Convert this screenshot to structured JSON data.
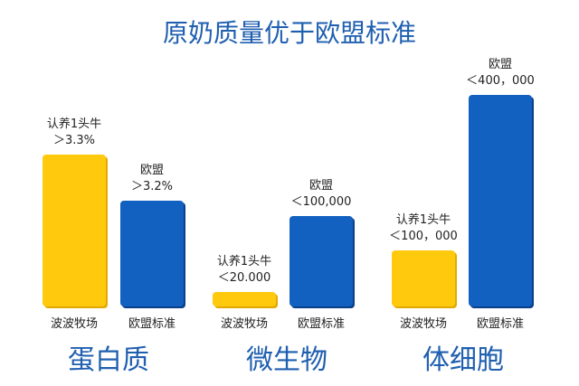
{
  "title": "原奶质量优于欧盟标准",
  "colors": {
    "yellow": "#ffc90e",
    "yellow_edge": "#e2a900",
    "blue": "#1260c0",
    "blue_edge": "#0a3f8a",
    "title": "#1f5fb0"
  },
  "chart_data": {
    "type": "bar",
    "title": "原奶质量优于欧盟标准",
    "groups": [
      {
        "name": "蛋白质",
        "bars": [
          {
            "category": "波波牧场",
            "label_line1": "认养1头牛",
            "label_line2": "＞3.3%",
            "color": "yellow"
          },
          {
            "category": "欧盟标准",
            "label_line1": "欧盟",
            "label_line2": "＞3.2%",
            "color": "blue"
          }
        ]
      },
      {
        "name": "微生物",
        "bars": [
          {
            "category": "波波牧场",
            "label_line1": "认养1头牛",
            "label_line2": "＜20.000",
            "color": "yellow"
          },
          {
            "category": "欧盟标准",
            "label_line1": "欧盟",
            "label_line2": "＜100,000",
            "color": "blue"
          }
        ]
      },
      {
        "name": "体细胞",
        "bars": [
          {
            "category": "波波牧场",
            "label_line1": "认养1头牛",
            "label_line2": "＜100，000",
            "color": "yellow"
          },
          {
            "category": "欧盟标准",
            "label_line1": "欧盟",
            "label_line2": "＜400，000",
            "color": "blue"
          }
        ]
      }
    ]
  }
}
